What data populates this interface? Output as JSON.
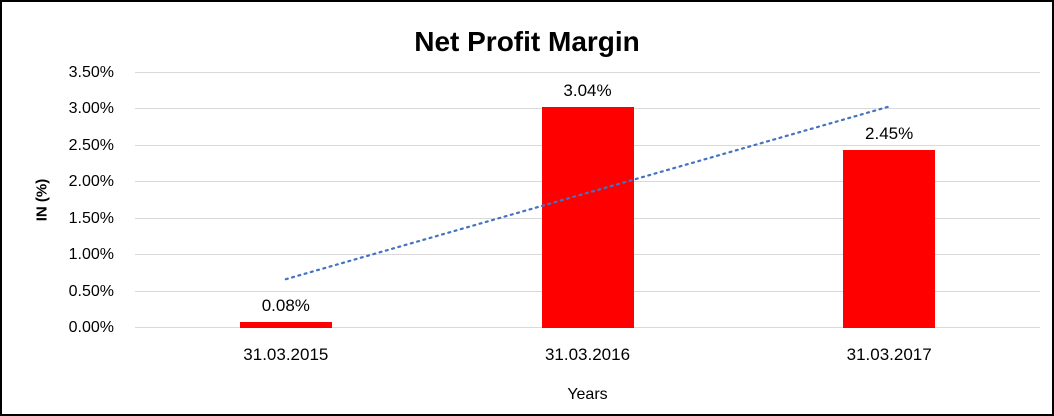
{
  "chart_data": {
    "type": "bar",
    "title": "Net Profit Margin",
    "categories": [
      "31.03.2015",
      "31.03.2016",
      "31.03.2017"
    ],
    "values": [
      0.08,
      3.04,
      2.45
    ],
    "data_labels": [
      "0.08%",
      "3.04%",
      "2.45%"
    ],
    "xlabel": "Years",
    "ylabel": "IN (%)",
    "ylim": [
      0,
      3.5
    ],
    "yticks": [
      {
        "value": 0.0,
        "label": "0.00%"
      },
      {
        "value": 0.5,
        "label": "0.50%"
      },
      {
        "value": 1.0,
        "label": "1.00%"
      },
      {
        "value": 1.5,
        "label": "1.50%"
      },
      {
        "value": 2.0,
        "label": "2.00%"
      },
      {
        "value": 2.5,
        "label": "2.50%"
      },
      {
        "value": 3.0,
        "label": "3.00%"
      },
      {
        "value": 3.5,
        "label": "3.50%"
      }
    ],
    "grid": true,
    "legend": "none",
    "bar_color": "#ff0000",
    "gridline_color": "#d9d9d9",
    "trendline": {
      "style": "dotted",
      "color": "#4472c4",
      "start": {
        "category_index": 0,
        "value": 0.67
      },
      "end": {
        "category_index": 2,
        "value": 3.04
      }
    }
  }
}
